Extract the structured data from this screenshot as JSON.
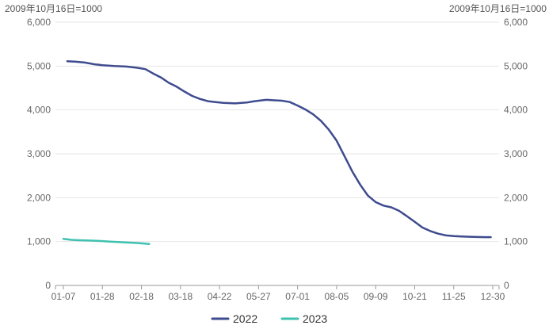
{
  "chart_data": {
    "type": "line",
    "unit_note_left": "2009年10月16日=1000",
    "unit_note_right": "2009年10月16日=1000",
    "y_ticks": [
      "0",
      "1,000",
      "2,000",
      "3,000",
      "4,000",
      "5,000",
      "6,000"
    ],
    "ylim": [
      0,
      6000
    ],
    "y_tick_values": [
      0,
      1000,
      2000,
      3000,
      4000,
      5000,
      6000
    ],
    "x_tick_labels": [
      "01-07",
      "01-28",
      "02-18",
      "03-18",
      "04-22",
      "05-27",
      "07-01",
      "08-05",
      "09-09",
      "10-21",
      "11-25",
      "12-30"
    ],
    "x_tick_values": [
      0,
      1,
      2,
      3,
      4,
      5,
      6,
      7,
      8,
      9,
      10,
      11
    ],
    "xlim": [
      0,
      11
    ],
    "grid": true,
    "legend_position": "bottom",
    "series": [
      {
        "name": "2022",
        "color": "#3f4b8f",
        "x": [
          0.1,
          0.3,
          0.55,
          0.8,
          1.0,
          1.3,
          1.6,
          1.9,
          2.1,
          2.3,
          2.5,
          2.7,
          2.9,
          3.1,
          3.3,
          3.5,
          3.7,
          3.9,
          4.1,
          4.4,
          4.7,
          4.9,
          5.2,
          5.4,
          5.6,
          5.8,
          6.0,
          6.2,
          6.4,
          6.6,
          6.8,
          7.0,
          7.2,
          7.4,
          7.6,
          7.8,
          8.0,
          8.2,
          8.4,
          8.6,
          8.8,
          9.0,
          9.2,
          9.4,
          9.6,
          9.8,
          10.0,
          10.2,
          10.4,
          10.6,
          10.8,
          10.95
        ],
        "values": [
          5110,
          5100,
          5080,
          5040,
          5020,
          5000,
          4990,
          4960,
          4930,
          4830,
          4740,
          4620,
          4530,
          4420,
          4320,
          4250,
          4200,
          4180,
          4160,
          4150,
          4170,
          4200,
          4230,
          4220,
          4210,
          4180,
          4100,
          4010,
          3900,
          3750,
          3550,
          3300,
          2950,
          2600,
          2300,
          2050,
          1900,
          1820,
          1780,
          1700,
          1580,
          1450,
          1320,
          1240,
          1180,
          1140,
          1125,
          1115,
          1110,
          1105,
          1100,
          1100
        ]
      },
      {
        "name": "2023",
        "color": "#3fc1b0",
        "x": [
          0.0,
          0.2,
          0.4,
          0.6,
          0.8,
          1.0,
          1.2,
          1.4,
          1.6,
          1.8,
          2.0,
          2.2
        ],
        "values": [
          1060,
          1040,
          1030,
          1025,
          1020,
          1010,
          1000,
          990,
          980,
          970,
          960,
          945
        ]
      }
    ]
  }
}
